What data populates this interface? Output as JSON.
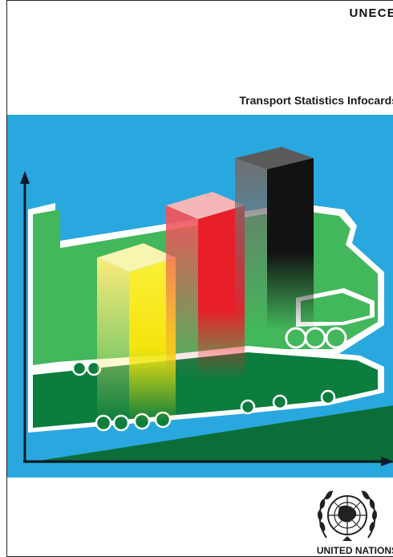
{
  "cover": {
    "organization": "UNECE",
    "title": "Transport Statistics Infocards",
    "publisher": "UNITED NATIONS"
  },
  "colors": {
    "background_band": "#29a8df",
    "truck_light_green": "#3fb55a",
    "truck_dark_green": "#0b7a3c",
    "bar_yellow": "#f7e41a",
    "bar_red": "#e8202a",
    "bar_black": "#1c1c1c",
    "axis": "#0d1a2a"
  },
  "icons": {
    "emblem": "un-emblem-icon"
  },
  "illustration": {
    "bars": [
      {
        "color": "yellow",
        "level": 1
      },
      {
        "color": "red",
        "level": 2
      },
      {
        "color": "black",
        "level": 3
      }
    ]
  }
}
